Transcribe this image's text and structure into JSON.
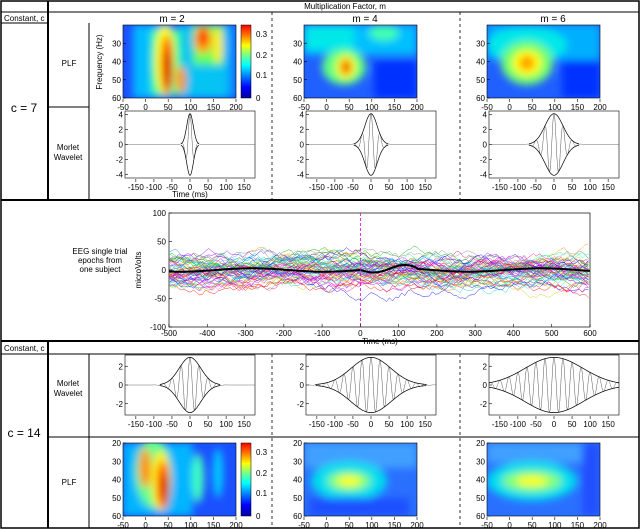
{
  "header": {
    "constant_label": "Constant, c",
    "multiplication_label": "Multiplication Factor, m",
    "columns": [
      "m = 2",
      "m = 4",
      "m = 6"
    ]
  },
  "top_section": {
    "c_label": "c = 7",
    "plf_label": "PLF",
    "morlet_label_1": "Morlet",
    "morlet_label_2": "Wavelet",
    "freq_axis_label": "Frequency (Hz)",
    "time_axis_label": "Time (ms)"
  },
  "eeg_section": {
    "label_lines": [
      "EEG single trial",
      "epochs from",
      "one subject"
    ],
    "ylabel": "microVolts",
    "xlabel": "Time (ms)"
  },
  "bottom_section": {
    "constant_label": "Constant, c",
    "c_label": "c = 14",
    "morlet_label_1": "Morlet",
    "morlet_label_2": "Wavelet",
    "plf_label": "PLF"
  },
  "colorbar": {
    "ticks": [
      "0.3",
      "0.2",
      "0.1",
      "0"
    ],
    "colors": [
      "#00008f",
      "#0000ff",
      "#0080ff",
      "#00ffff",
      "#80ff80",
      "#ffff00",
      "#ff8000",
      "#ff0000",
      "#800000"
    ]
  },
  "chart_data": [
    {
      "type": "heatmap",
      "name": "PLF c=7",
      "x_ticks": [
        "-50",
        "0",
        "50",
        "100",
        "150",
        "200"
      ],
      "xlim": [
        -50,
        200
      ],
      "y_ticks": [
        "30",
        "40",
        "50",
        "60"
      ],
      "ylim": [
        20,
        60
      ],
      "columns": [
        "m = 2",
        "m = 4",
        "m = 6"
      ],
      "color_range": [
        0,
        0.35
      ]
    },
    {
      "type": "line",
      "name": "Morlet Wavelet c=7",
      "x_ticks": [
        "-150",
        "-100",
        "-50",
        "0",
        "50",
        "100",
        "150"
      ],
      "xlim": [
        -180,
        180
      ],
      "y_ticks": [
        "4",
        "2",
        "0",
        "-2",
        "-4"
      ],
      "ylim": [
        -4.5,
        4.5
      ],
      "xlabel": "Time (ms)"
    },
    {
      "type": "line",
      "name": "EEG single trial epochs",
      "x_ticks": [
        "-500",
        "-400",
        "-300",
        "-200",
        "-100",
        "0",
        "100",
        "200",
        "300",
        "400",
        "500",
        "600"
      ],
      "xlim": [
        -500,
        600
      ],
      "y_ticks": [
        "100",
        "50",
        "0",
        "-50",
        "-100"
      ],
      "ylim": [
        -100,
        100
      ],
      "xlabel": "Time (ms)",
      "ylabel": "microVolts"
    },
    {
      "type": "line",
      "name": "Morlet Wavelet c=14",
      "x_ticks": [
        "-150",
        "-100",
        "-50",
        "0",
        "50",
        "100",
        "150"
      ],
      "xlim": [
        -180,
        180
      ],
      "y_ticks": [
        "2",
        "0",
        "-2"
      ],
      "ylim": [
        -3.2,
        3.2
      ]
    },
    {
      "type": "heatmap",
      "name": "PLF c=14",
      "x_ticks": [
        "-50",
        "0",
        "50",
        "100",
        "150",
        "200"
      ],
      "xlim": [
        -50,
        200
      ],
      "y_ticks": [
        "20",
        "30",
        "40",
        "50",
        "60"
      ],
      "ylim": [
        20,
        60
      ],
      "columns": [
        "m = 2",
        "m = 4",
        "m = 6"
      ],
      "color_range": [
        0,
        0.35
      ]
    }
  ]
}
